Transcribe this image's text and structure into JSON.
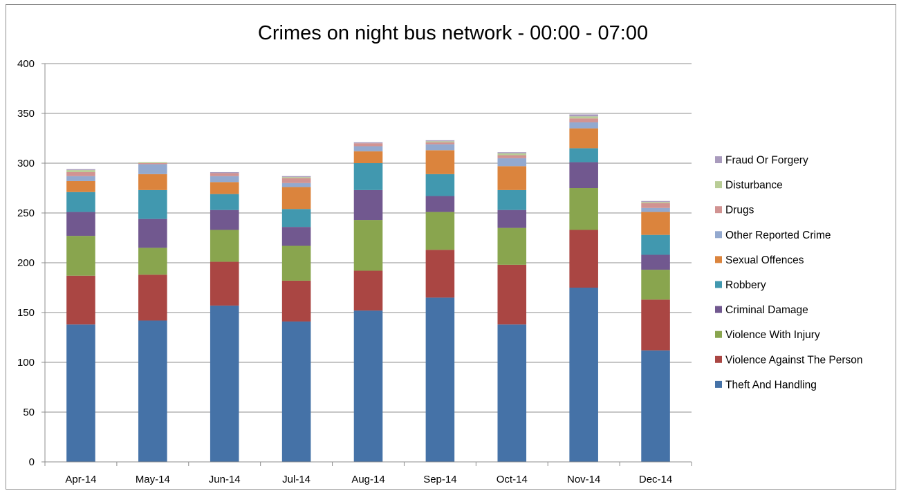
{
  "chart_data": {
    "type": "bar",
    "stacked": true,
    "title": "Crimes on night bus network - 00:00 - 07:00",
    "xlabel": "",
    "ylabel": "",
    "ylim": [
      0,
      400
    ],
    "yticks": [
      0,
      50,
      100,
      150,
      200,
      250,
      300,
      350,
      400
    ],
    "grid": true,
    "legend_position": "right",
    "categories": [
      "Apr-14",
      "May-14",
      "Jun-14",
      "Jul-14",
      "Aug-14",
      "Sep-14",
      "Oct-14",
      "Nov-14",
      "Dec-14"
    ],
    "series": [
      {
        "name": "Theft And Handling",
        "color": "#4572A7",
        "values": [
          138,
          142,
          157,
          141,
          152,
          165,
          138,
          175,
          112
        ]
      },
      {
        "name": "Violence Against The Person",
        "color": "#AA4643",
        "values": [
          49,
          46,
          44,
          41,
          40,
          48,
          60,
          58,
          51
        ]
      },
      {
        "name": "Violence With Injury",
        "color": "#89A54E",
        "values": [
          40,
          27,
          32,
          35,
          51,
          38,
          37,
          42,
          30
        ]
      },
      {
        "name": "Criminal Damage",
        "color": "#71588F",
        "values": [
          24,
          29,
          20,
          19,
          30,
          16,
          18,
          26,
          15
        ]
      },
      {
        "name": "Robbery",
        "color": "#4198AF",
        "values": [
          20,
          29,
          16,
          18,
          27,
          22,
          20,
          14,
          20
        ]
      },
      {
        "name": "Sexual Offences",
        "color": "#DB843D",
        "values": [
          11,
          16,
          12,
          22,
          12,
          24,
          24,
          20,
          23
        ]
      },
      {
        "name": "Other Reported Crime",
        "color": "#93A9CF",
        "values": [
          5,
          10,
          6,
          4,
          5,
          6,
          8,
          6,
          4
        ]
      },
      {
        "name": "Drugs",
        "color": "#D19392",
        "values": [
          4,
          1,
          3,
          5,
          3,
          2,
          3,
          4,
          5
        ]
      },
      {
        "name": "Disturbance",
        "color": "#B9CD96",
        "values": [
          2,
          1,
          0,
          1,
          0,
          1,
          2,
          2,
          1
        ]
      },
      {
        "name": "Fraud Or Forgery",
        "color": "#A99BBD",
        "values": [
          1,
          0,
          1,
          1,
          1,
          1,
          1,
          2,
          1
        ]
      }
    ]
  }
}
